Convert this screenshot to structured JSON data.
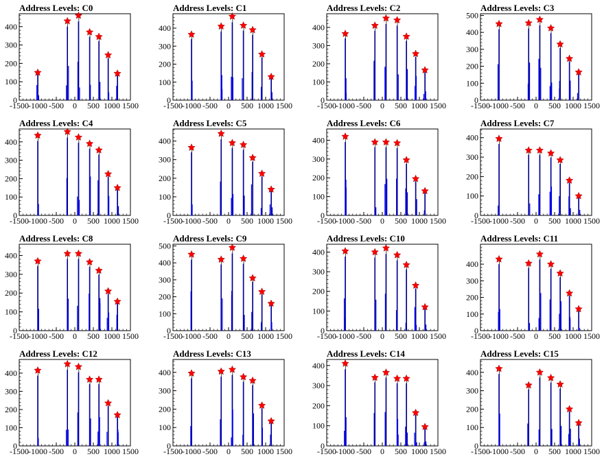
{
  "chart_data": {
    "type": "bar",
    "xlim": [
      -1500,
      1500
    ],
    "x_ticks": [
      "-1500",
      "-1000",
      "-500",
      "0",
      "500",
      "1000",
      "1500"
    ],
    "peak_x": [
      -1000,
      -200,
      100,
      400,
      650,
      900,
      1150
    ],
    "colors": {
      "bar": "#0000ff",
      "line": "#000000",
      "marker": "#ff0000"
    },
    "grid": false,
    "legend": "none",
    "panels": [
      {
        "title": "Address Levels: C0",
        "ylim": [
          0,
          470
        ],
        "y_ticks": [
          "0",
          "100",
          "200",
          "300",
          "400"
        ],
        "peaks": [
          150,
          430,
          460,
          370,
          345,
          245,
          145
        ]
      },
      {
        "title": "Address Levels: C1",
        "ylim": [
          0,
          480
        ],
        "y_ticks": [
          "0",
          "100",
          "200",
          "300",
          "400"
        ],
        "peaks": [
          365,
          410,
          465,
          415,
          390,
          255,
          130
        ]
      },
      {
        "title": "Address Levels: C2",
        "ylim": [
          0,
          475
        ],
        "y_ticks": [
          "0",
          "100",
          "200",
          "300",
          "400"
        ],
        "peaks": [
          365,
          410,
          450,
          440,
          350,
          255,
          165
        ]
      },
      {
        "title": "Address Levels: C3",
        "ylim": [
          0,
          510
        ],
        "y_ticks": [
          "0",
          "100",
          "200",
          "300",
          "400",
          "500"
        ],
        "peaks": [
          450,
          455,
          475,
          425,
          330,
          245,
          165
        ]
      },
      {
        "title": "Address Levels: C4",
        "ylim": [
          0,
          470
        ],
        "y_ticks": [
          "0",
          "100",
          "200",
          "300",
          "400"
        ],
        "peaks": [
          435,
          455,
          425,
          390,
          355,
          225,
          150
        ]
      },
      {
        "title": "Address Levels: C5",
        "ylim": [
          0,
          465
        ],
        "y_ticks": [
          "0",
          "100",
          "200",
          "300",
          "400"
        ],
        "peaks": [
          365,
          440,
          390,
          380,
          310,
          225,
          140
        ]
      },
      {
        "title": "Address Levels: C6",
        "ylim": [
          0,
          460
        ],
        "y_ticks": [
          "0",
          "100",
          "200",
          "300",
          "400"
        ],
        "peaks": [
          420,
          390,
          390,
          385,
          295,
          195,
          130
        ]
      },
      {
        "title": "Address Levels: C7",
        "ylim": [
          0,
          445
        ],
        "y_ticks": [
          "0",
          "100",
          "200",
          "300",
          "400"
        ],
        "peaks": [
          395,
          335,
          335,
          320,
          285,
          180,
          100
        ]
      },
      {
        "title": "Address Levels: C8",
        "ylim": [
          0,
          460
        ],
        "y_ticks": [
          "0",
          "100",
          "200",
          "300",
          "400"
        ],
        "peaks": [
          370,
          410,
          410,
          365,
          320,
          210,
          155
        ]
      },
      {
        "title": "Address Levels: C9",
        "ylim": [
          0,
          510
        ],
        "y_ticks": [
          "0",
          "100",
          "200",
          "300",
          "400",
          "500"
        ],
        "peaks": [
          450,
          420,
          490,
          425,
          310,
          230,
          160
        ]
      },
      {
        "title": "Address Levels: C10",
        "ylim": [
          0,
          440
        ],
        "y_ticks": [
          "0",
          "100",
          "200",
          "300",
          "400"
        ],
        "peaks": [
          405,
          400,
          420,
          385,
          335,
          230,
          120
        ]
      },
      {
        "title": "Address Levels: C11",
        "ylim": [
          0,
          520
        ],
        "y_ticks": [
          "0",
          "100",
          "200",
          "300",
          "400"
        ],
        "peaks": [
          430,
          405,
          460,
          400,
          345,
          225,
          130
        ]
      },
      {
        "title": "Address Levels: C12",
        "ylim": [
          0,
          475
        ],
        "y_ticks": [
          "0",
          "100",
          "200",
          "300",
          "400"
        ],
        "peaks": [
          415,
          450,
          435,
          365,
          365,
          235,
          170
        ]
      },
      {
        "title": "Address Levels: C13",
        "ylim": [
          0,
          470
        ],
        "y_ticks": [
          "0",
          "100",
          "200",
          "300",
          "400"
        ],
        "peaks": [
          395,
          405,
          415,
          375,
          355,
          220,
          135
        ]
      },
      {
        "title": "Address Levels: C14",
        "ylim": [
          0,
          430
        ],
        "y_ticks": [
          "0",
          "100",
          "200",
          "300",
          "400"
        ],
        "peaks": [
          410,
          340,
          365,
          335,
          335,
          165,
          95
        ]
      },
      {
        "title": "Address Levels: C15",
        "ylim": [
          0,
          470
        ],
        "y_ticks": [
          "0",
          "100",
          "200",
          "300",
          "400"
        ],
        "peaks": [
          420,
          330,
          400,
          370,
          335,
          200,
          125
        ]
      }
    ]
  }
}
